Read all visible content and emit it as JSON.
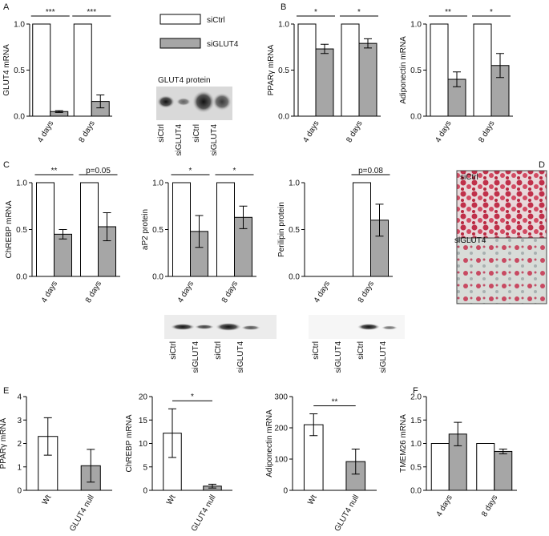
{
  "panels": [
    "A",
    "B",
    "C",
    "D",
    "E",
    "F"
  ],
  "chart_data": [
    {
      "type": "bar",
      "ylabel": "GLUT4 mRNA",
      "categories": [
        "4 days",
        "8 days"
      ],
      "ylim": [
        0,
        1
      ],
      "yticks": [
        {
          "value": 0,
          "label": "0.0"
        },
        {
          "value": 0.5,
          "label": "0.5"
        },
        {
          "value": 1,
          "label": "1.0"
        }
      ],
      "series": [
        {
          "name": "siCtrl",
          "color": "#ffffff",
          "values": [
            1,
            1
          ],
          "errors": [
            null,
            null
          ]
        },
        {
          "name": "siGLUT4",
          "color": "#a6a6a6",
          "values": [
            0.05,
            0.16
          ],
          "errors": [
            0.01,
            0.07
          ]
        }
      ],
      "annotations": [
        "***",
        "***"
      ]
    },
    {
      "type": "bar",
      "ylabel": "PPARγ mRNA",
      "categories": [
        "4 days",
        "8 days"
      ],
      "ylim": [
        0,
        1
      ],
      "yticks": [
        {
          "value": 0,
          "label": "0.0"
        },
        {
          "value": 0.5,
          "label": "0.5"
        },
        {
          "value": 1,
          "label": "1.0"
        }
      ],
      "series": [
        {
          "color": "#ffffff",
          "values": [
            1,
            1
          ],
          "errors": [
            null,
            null
          ]
        },
        {
          "color": "#a6a6a6",
          "values": [
            0.73,
            0.79
          ],
          "errors": [
            0.05,
            0.05
          ]
        }
      ],
      "annotations": [
        "*",
        "*"
      ]
    },
    {
      "type": "bar",
      "ylabel": "Adiponectin mRNA",
      "categories": [
        "4 days",
        "8 days"
      ],
      "ylim": [
        0,
        1
      ],
      "yticks": [
        {
          "value": 0,
          "label": "0.0"
        },
        {
          "value": 0.5,
          "label": "0.5"
        },
        {
          "value": 1,
          "label": "1.0"
        }
      ],
      "series": [
        {
          "color": "#ffffff",
          "values": [
            1,
            1
          ],
          "errors": [
            null,
            null
          ]
        },
        {
          "color": "#a6a6a6",
          "values": [
            0.4,
            0.55
          ],
          "errors": [
            0.08,
            0.13
          ]
        }
      ],
      "annotations": [
        "**",
        "*"
      ]
    },
    {
      "type": "bar",
      "ylabel": "ChREBP mRNA",
      "categories": [
        "4 days",
        "8 days"
      ],
      "ylim": [
        0,
        1
      ],
      "yticks": [
        {
          "value": 0,
          "label": "0.0"
        },
        {
          "value": 0.5,
          "label": "0.5"
        },
        {
          "value": 1,
          "label": "1.0"
        }
      ],
      "series": [
        {
          "color": "#ffffff",
          "values": [
            1,
            1
          ],
          "errors": [
            null,
            null
          ]
        },
        {
          "color": "#a6a6a6",
          "values": [
            0.45,
            0.53
          ],
          "errors": [
            0.05,
            0.15
          ]
        }
      ],
      "annotations": [
        "**",
        "p=0.05"
      ]
    },
    {
      "type": "bar",
      "ylabel": "aP2 protein",
      "categories": [
        "4 days",
        "8 days"
      ],
      "ylim": [
        0,
        1
      ],
      "yticks": [
        {
          "value": 0,
          "label": "0.0"
        },
        {
          "value": 0.5,
          "label": "0.5"
        },
        {
          "value": 1,
          "label": "1.0"
        }
      ],
      "series": [
        {
          "color": "#ffffff",
          "values": [
            1,
            1
          ],
          "errors": [
            null,
            null
          ]
        },
        {
          "color": "#a6a6a6",
          "values": [
            0.48,
            0.63
          ],
          "errors": [
            0.17,
            0.12
          ]
        }
      ],
      "annotations": [
        "*",
        "*"
      ]
    },
    {
      "type": "bar",
      "ylabel": "Perilipin protein",
      "categories": [
        "4 days",
        "8 days"
      ],
      "ylim": [
        0,
        1
      ],
      "yticks": [
        {
          "value": 0,
          "label": "0.0"
        },
        {
          "value": 0.5,
          "label": "0.5"
        },
        {
          "value": 1,
          "label": "1.0"
        }
      ],
      "series": [
        {
          "color": "#ffffff",
          "values": [
            null,
            1
          ],
          "errors": [
            null,
            null
          ]
        },
        {
          "color": "#a6a6a6",
          "values": [
            null,
            0.6
          ],
          "errors": [
            null,
            0.17
          ]
        }
      ],
      "annotations": [
        null,
        "p=0.08"
      ]
    },
    {
      "type": "bar",
      "ylabel": "PPARγ mRNA",
      "categories": [
        "Wt",
        "GLUT4 null"
      ],
      "ylim": [
        0,
        4
      ],
      "yticks": [
        0,
        1,
        2,
        3,
        4
      ],
      "values": [
        2.3,
        1.05
      ],
      "errors": [
        0.8,
        0.7
      ],
      "colors": [
        "#ffffff",
        "#a6a6a6"
      ]
    },
    {
      "type": "bar",
      "ylabel": "ChREBP mRNA",
      "categories": [
        "Wt",
        "GLUT4 null"
      ],
      "ylim": [
        0,
        20
      ],
      "yticks": [
        0,
        5,
        10,
        15,
        20
      ],
      "values": [
        12.2,
        0.9
      ],
      "errors": [
        5.2,
        0.4
      ],
      "colors": [
        "#ffffff",
        "#a6a6a6"
      ],
      "annotation": "*"
    },
    {
      "type": "bar",
      "ylabel": "Adiponectin mRNA",
      "categories": [
        "Wt",
        "GLUT4 null"
      ],
      "ylim": [
        0,
        300
      ],
      "yticks": [
        0,
        100,
        200,
        300
      ],
      "values": [
        210,
        92
      ],
      "errors": [
        35,
        40
      ],
      "colors": [
        "#ffffff",
        "#a6a6a6"
      ],
      "annotation": "**"
    },
    {
      "type": "bar",
      "ylabel": "TMEM26 mRNA",
      "categories": [
        "4 days",
        "8 days"
      ],
      "ylim": [
        0,
        2
      ],
      "yticks": [
        {
          "value": 0,
          "label": "0.0"
        },
        {
          "value": 0.5,
          "label": "0.5"
        },
        {
          "value": 1,
          "label": "1.0"
        },
        {
          "value": 1.5,
          "label": "1.5"
        },
        {
          "value": 2,
          "label": "2.0"
        }
      ],
      "series": [
        {
          "color": "#ffffff",
          "values": [
            1,
            1
          ],
          "errors": [
            null,
            null
          ]
        },
        {
          "color": "#a6a6a6",
          "values": [
            1.2,
            0.83
          ],
          "errors": [
            0.25,
            0.05
          ]
        }
      ]
    }
  ],
  "blots": [
    {
      "title": "GLUT4 protein",
      "lanes": [
        "siCtrl",
        "siGLUT4",
        "siCtrl",
        "siGLUT4"
      ]
    },
    {
      "lanes": [
        "siCtrl",
        "siGLUT4",
        "siCtrl",
        "siGLUT4"
      ]
    },
    {
      "lanes": [
        "siCtrl",
        "siGLUT4",
        "siCtrl",
        "siGLUT4"
      ]
    }
  ],
  "staining": {
    "labels": [
      "siCtrl",
      "siGLUT4"
    ]
  }
}
